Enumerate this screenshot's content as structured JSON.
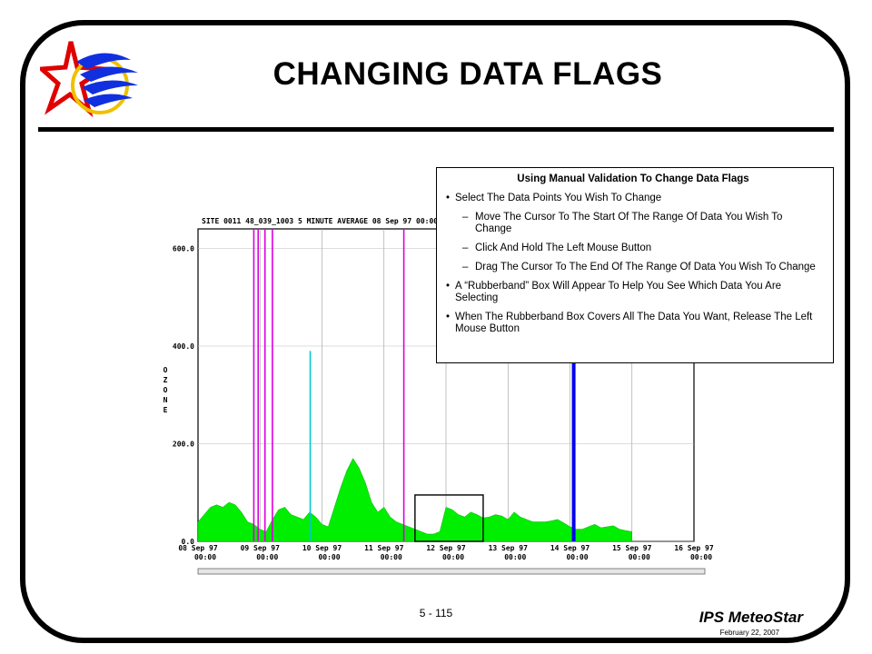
{
  "slide": {
    "title": "CHANGING DATA FLAGS",
    "page_number": "5 - 115",
    "brand": "IPS MeteoStar",
    "date": "February 22, 2007"
  },
  "callout": {
    "title": "Using Manual Validation To Change Data Flags",
    "bullets": [
      {
        "level": 1,
        "text": "Select The Data Points You Wish To Change"
      },
      {
        "level": 2,
        "text": "Move The Cursor To The Start Of The Range Of Data You Wish To Change"
      },
      {
        "level": 2,
        "text": "Click And Hold The Left Mouse Button"
      },
      {
        "level": 2,
        "text": "Drag The Cursor To The End Of The Range Of Data You Wish To Change"
      },
      {
        "level": 1,
        "text": "A “Rubberband” Box Will Appear To Help You See Which Data You Are Selecting"
      },
      {
        "level": 1,
        "text": "When The Rubberband Box Covers All The Data You Want, Release The Left Mouse Button"
      }
    ]
  },
  "chart": {
    "header": "SITE 0011 48_039_1003 5 MINUTE AVERAGE 08 Sep 97 00:00",
    "ylabel_letters": [
      "O",
      "Z",
      "O",
      "N",
      "E"
    ],
    "colors": {
      "data": "#00ee00",
      "flag_magenta": "#dd00dd",
      "flag_cyan": "#00cccc",
      "flag_blue": "#0000ee",
      "rubberband": "#000000"
    }
  },
  "chart_data": {
    "type": "area",
    "ylim": [
      0,
      640
    ],
    "yticks": [
      0,
      200,
      400,
      600
    ],
    "ytick_labels": [
      "0.0",
      "200.0",
      "400.0",
      "600.0"
    ],
    "x_tick_labels": [
      [
        "08 Sep 97",
        "00:00"
      ],
      [
        "09 Sep 97",
        "00:00"
      ],
      [
        "10 Sep 97",
        "00:00"
      ],
      [
        "11 Sep 97",
        "00:00"
      ],
      [
        "12 Sep 97",
        "00:00"
      ],
      [
        "13 Sep 97",
        "00:00"
      ],
      [
        "14 Sep 97",
        "00:00"
      ],
      [
        "15 Sep 97",
        "00:00"
      ],
      [
        "16 Sep 97",
        "00:00"
      ]
    ],
    "series": [
      {
        "x": [
          0.0,
          0.1,
          0.2,
          0.3,
          0.4,
          0.5,
          0.6,
          0.7,
          0.8,
          0.9,
          1.0,
          1.1,
          1.2,
          1.3,
          1.4,
          1.5,
          1.6,
          1.7,
          1.8,
          1.9,
          2.0,
          2.1,
          2.2,
          2.3,
          2.4,
          2.5,
          2.6,
          2.7,
          2.8,
          2.9,
          3.0,
          3.1,
          3.2,
          3.3,
          3.4,
          3.5,
          3.6,
          3.7,
          3.8,
          3.9,
          4.0,
          4.1,
          4.2,
          4.3,
          4.4,
          4.5,
          4.6,
          4.7,
          4.8,
          4.9,
          5.0,
          5.1,
          5.2,
          5.3,
          5.4,
          5.5,
          5.6,
          5.7,
          5.8,
          5.9,
          6.0,
          6.1,
          6.2,
          6.3,
          6.4,
          6.5,
          6.6,
          6.7,
          6.8,
          6.9,
          7.0
        ],
        "y": [
          40,
          55,
          70,
          75,
          70,
          80,
          75,
          60,
          40,
          35,
          25,
          20,
          45,
          65,
          70,
          55,
          50,
          45,
          60,
          50,
          35,
          30,
          70,
          110,
          145,
          170,
          150,
          120,
          80,
          60,
          70,
          50,
          40,
          35,
          30,
          25,
          20,
          15,
          15,
          20,
          70,
          65,
          55,
          50,
          60,
          55,
          48,
          50,
          55,
          52,
          45,
          60,
          50,
          45,
          40,
          40,
          40,
          42,
          45,
          38,
          30,
          25,
          25,
          30,
          35,
          28,
          30,
          32,
          25,
          22,
          20
        ]
      }
    ],
    "flag_lines": [
      {
        "x": 0.9,
        "color": "magenta"
      },
      {
        "x": 0.97,
        "color": "magenta"
      },
      {
        "x": 1.08,
        "color": "magenta"
      },
      {
        "x": 1.2,
        "color": "magenta"
      },
      {
        "x": 3.32,
        "color": "magenta"
      },
      {
        "x": 1.81,
        "color": "cyan",
        "y": 390
      },
      {
        "x": 6.06,
        "color": "blue",
        "y": 400
      }
    ],
    "rubberband": {
      "x0": 3.5,
      "x1": 4.6,
      "y0": 0,
      "y1": 95
    }
  }
}
